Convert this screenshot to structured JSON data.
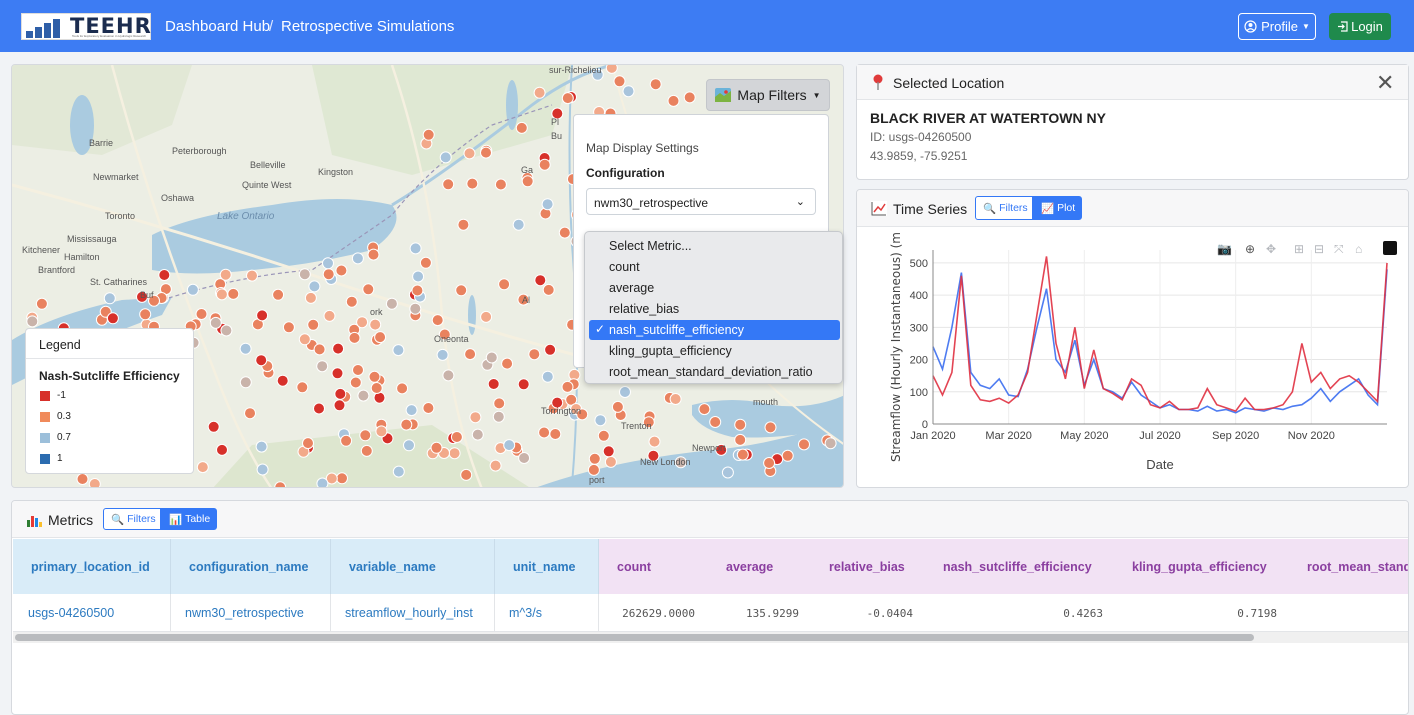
{
  "navbar": {
    "logo_text": "TEEHR",
    "logo_tagline": "Tools for Exploratory Evaluation in Hydrologic Research",
    "breadcrumb": [
      "Dashboard Hub",
      "Retrospective Simulations"
    ],
    "breadcrumb_sep": "/",
    "profile_label": "Profile",
    "login_label": "Login",
    "login_color": "#1f8a4c"
  },
  "map": {
    "filters_button": "Map Filters",
    "settings": {
      "title": "Map Display Settings",
      "config_label": "Configuration",
      "config_value": "nwm30_retrospective"
    },
    "metric_options": [
      "Select Metric...",
      "count",
      "average",
      "relative_bias",
      "nash_sutcliffe_efficiency",
      "kling_gupta_efficiency",
      "root_mean_standard_deviation_ratio"
    ],
    "selected_metric": "nash_sutcliffe_efficiency",
    "place_names": [
      "sur-Richelieu",
      "Barrie",
      "Peterborough",
      "Belleville",
      "Newmarket",
      "Quinte West",
      "Oshawa",
      "Kingston",
      "Toronto",
      "Mississauga",
      "Kitchener",
      "Hamilton",
      "Brantford",
      "St. Catharines",
      "Buf",
      "Lake Ontario",
      "Oneonta",
      "Torrington",
      "Trenton",
      "Newport",
      "New London",
      "ork",
      "Pl",
      "Bu",
      "Ga",
      "mouth",
      "port",
      "Al"
    ],
    "legend": {
      "header": "Legend",
      "title": "Nash-Sutcliffe Efficiency",
      "items": [
        {
          "label": "-1",
          "color": "#d7302a"
        },
        {
          "label": "0.3",
          "color": "#f08a5b"
        },
        {
          "label": "0.7",
          "color": "#9cbfda"
        },
        {
          "label": "1",
          "color": "#2b6cb0"
        }
      ]
    }
  },
  "location": {
    "header": "Selected Location",
    "name": "BLACK RIVER AT WATERTOWN NY",
    "id": "ID: usgs-04260500",
    "coords": "43.9859, -75.9251"
  },
  "timeseries": {
    "header": "Time Series",
    "filters_label": "Filters",
    "plot_label": "Plot"
  },
  "chart_data": {
    "type": "line",
    "xlabel": "Date",
    "ylabel": "Streamflow (Hourly Instantaneous) (m",
    "x_ticks": [
      "Jan 2020",
      "Mar 2020",
      "May 2020",
      "Jul 2020",
      "Sep 2020",
      "Nov 2020"
    ],
    "y_ticks": [
      0,
      100,
      200,
      300,
      400,
      500
    ],
    "ylim": [
      0,
      540
    ],
    "x_months": [
      0,
      0.25,
      0.5,
      0.75,
      1,
      1.25,
      1.5,
      1.75,
      2,
      2.25,
      2.5,
      2.75,
      3,
      3.25,
      3.5,
      3.75,
      4,
      4.25,
      4.5,
      4.75,
      5,
      5.25,
      5.5,
      5.75,
      6,
      6.25,
      6.5,
      6.75,
      7,
      7.25,
      7.5,
      7.75,
      8,
      8.25,
      8.5,
      8.75,
      9,
      9.25,
      9.5,
      9.75,
      10,
      10.25,
      10.5,
      10.75,
      11,
      11.25,
      11.5,
      11.75,
      12
    ],
    "series": [
      {
        "color": "#3b6ef0",
        "values": [
          240,
          170,
          300,
          470,
          160,
          120,
          110,
          140,
          90,
          85,
          170,
          300,
          420,
          200,
          160,
          260,
          120,
          200,
          110,
          100,
          80,
          130,
          90,
          70,
          50,
          60,
          45,
          45,
          40,
          55,
          40,
          45,
          35,
          50,
          45,
          40,
          50,
          45,
          55,
          60,
          80,
          110,
          70,
          100,
          120,
          140,
          90,
          60,
          480
        ]
      },
      {
        "color": "#e03040",
        "values": [
          150,
          90,
          160,
          460,
          120,
          75,
          70,
          80,
          65,
          90,
          160,
          340,
          520,
          250,
          140,
          300,
          110,
          230,
          110,
          95,
          75,
          140,
          120,
          60,
          50,
          70,
          45,
          45,
          50,
          110,
          60,
          50,
          40,
          80,
          45,
          45,
          50,
          60,
          100,
          250,
          130,
          160,
          110,
          140,
          150,
          130,
          100,
          70,
          500
        ]
      }
    ]
  },
  "metrics": {
    "header": "Metrics",
    "filters_label": "Filters",
    "table_label": "Table",
    "columns": [
      "primary_location_id",
      "configuration_name",
      "variable_name",
      "unit_name",
      "count",
      "average",
      "relative_bias",
      "nash_sutcliffe_efficiency",
      "kling_gupta_efficiency",
      "root_mean_stand"
    ],
    "row": [
      "usgs-04260500",
      "nwm30_retrospective",
      "streamflow_hourly_inst",
      "m^3/s",
      "262629.0000",
      "135.9299",
      "-0.0404",
      "0.4263",
      "0.7198",
      ""
    ]
  }
}
